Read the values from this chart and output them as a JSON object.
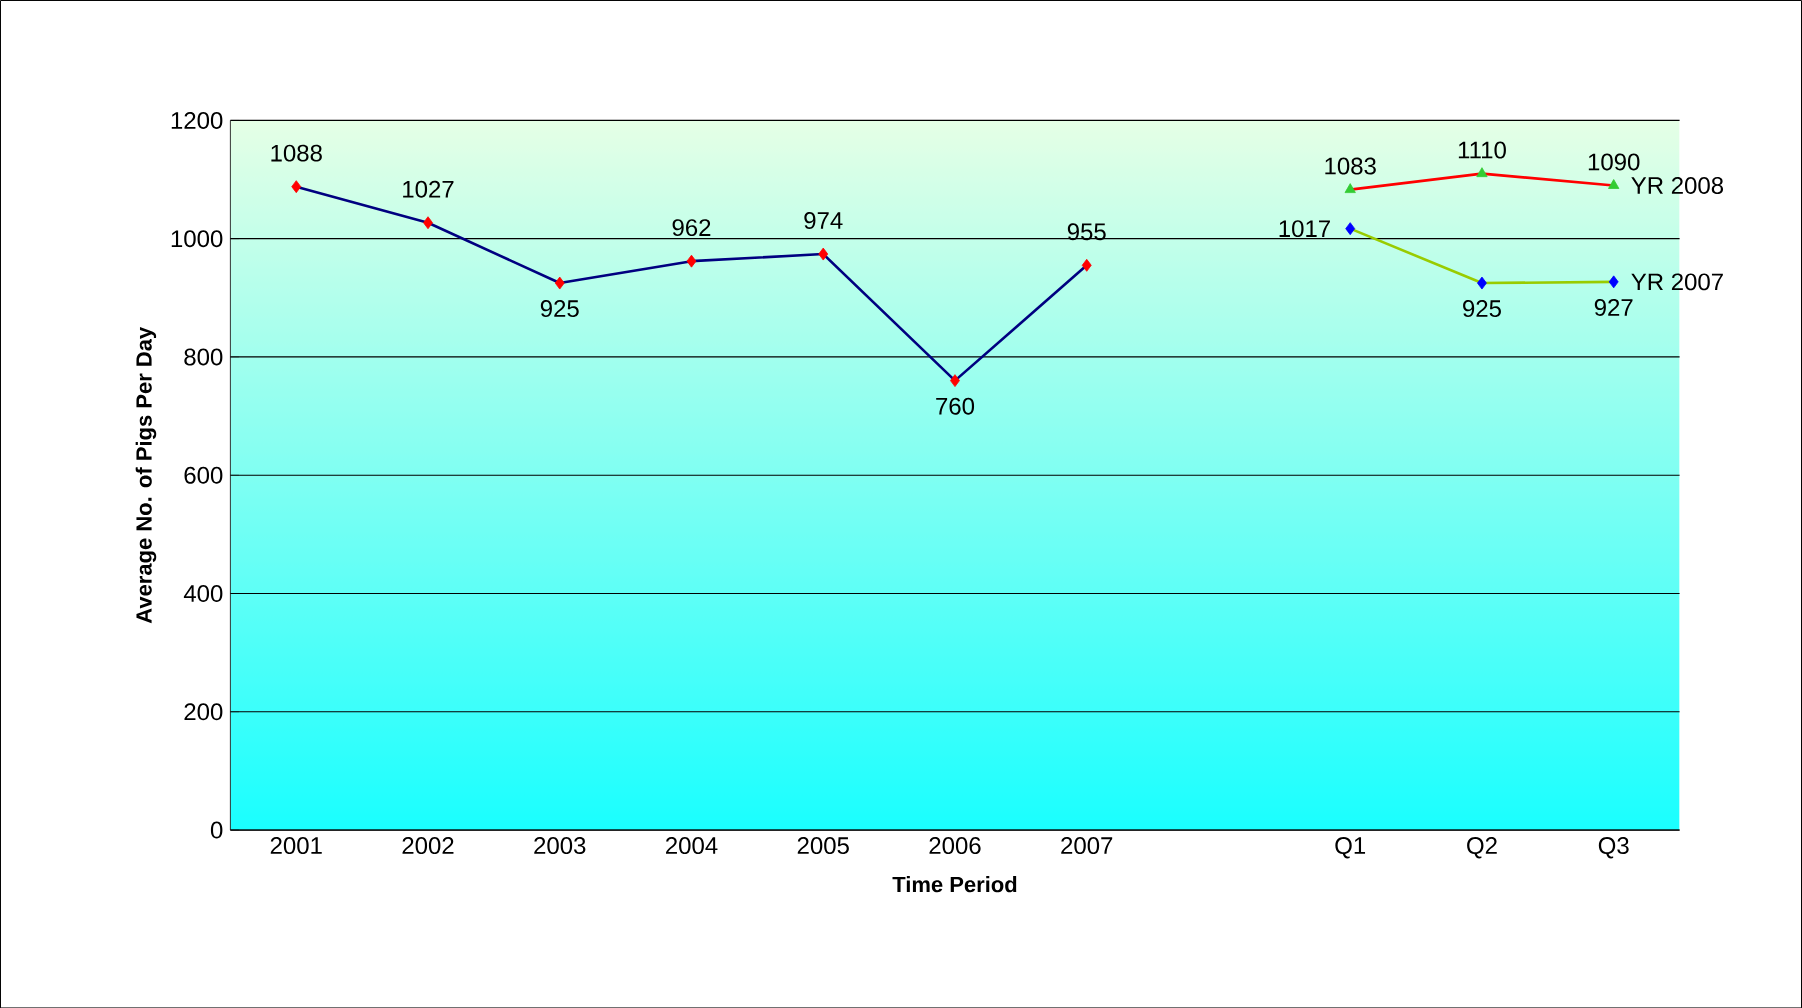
{
  "chart_data": {
    "type": "line",
    "xlabel": "Time Period",
    "ylabel": "Average No. of Pigs Per Day",
    "categories": [
      "2001",
      "2002",
      "2003",
      "2004",
      "2005",
      "2006",
      "2007",
      null,
      "Q1",
      "Q2",
      "Q3"
    ],
    "series": [
      {
        "color": "#000080",
        "colors": [
          "#ff0000",
          "#ff0000",
          "#ff0000",
          "#ff0000",
          "#ff0000",
          "#ff0000",
          "#ff0000",
          null,
          null,
          null,
          null
        ],
        "marker": "diamond",
        "values": [
          1088,
          1027,
          925,
          962,
          974,
          760,
          955,
          null,
          null,
          null,
          null
        ]
      },
      {
        "name": "YR 2008",
        "color": "#ff0000",
        "colors": [
          null,
          null,
          null,
          null,
          null,
          null,
          null,
          null,
          "#33cc33",
          "#33cc33",
          "#33cc33"
        ],
        "marker": "triangle",
        "values": [
          null,
          null,
          null,
          null,
          null,
          null,
          null,
          null,
          1083,
          1110,
          1090
        ]
      },
      {
        "name": "YR 2007",
        "color": "#99cc00",
        "colors": [
          null,
          null,
          null,
          null,
          null,
          null,
          null,
          null,
          "#0000ff",
          "#0000ff",
          "#0000ff"
        ],
        "marker": "diamond",
        "values": [
          null,
          null,
          null,
          null,
          null,
          null,
          null,
          null,
          1017,
          925,
          927
        ]
      }
    ],
    "ylim": [
      0,
      1200
    ],
    "yticks": [
      0,
      200,
      400,
      600,
      800,
      1000,
      1200
    ],
    "grid": "y",
    "data_labels": true
  }
}
